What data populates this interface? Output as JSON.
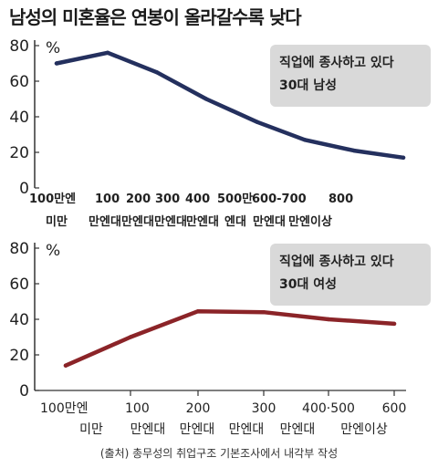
{
  "title": "남성의 미혼율은 연봉이 올라갈수록 낮다",
  "source": "(출처) 총무성의 취업구조 기본조사에서 내각부 작성",
  "colors": {
    "men": "#24305e",
    "women": "#8b2428",
    "note_bg": "#d9d9d9",
    "axis": "#333333"
  },
  "chart_data": [
    {
      "type": "line",
      "unit": "%",
      "ylim": [
        0,
        80
      ],
      "yticks": [
        "0",
        "20",
        "40",
        "60",
        "80"
      ],
      "categories_top": [
        "100만엔",
        "100",
        "200",
        "300",
        "400",
        "500만",
        "600-700",
        "800"
      ],
      "categories_bottom": [
        "미만",
        "만엔대",
        "만엔대",
        "만엔대",
        "만엔대",
        "엔대",
        "만엔대",
        "만엔이상"
      ],
      "series": [
        {
          "values": [
            70,
            76,
            65,
            50,
            37,
            27,
            21,
            17
          ]
        }
      ],
      "annotation": [
        "직업에 종사하고 있다",
        "30대 남성"
      ]
    },
    {
      "type": "line",
      "unit": "%",
      "ylim": [
        0,
        80
      ],
      "yticks": [
        "0",
        "20",
        "40",
        "60",
        "80"
      ],
      "categories_top": [
        "100만엔",
        "100",
        "200",
        "300",
        "400·500",
        "600"
      ],
      "categories_bottom": [
        "미만",
        "만엔대",
        "만엔대",
        "만엔대",
        "만엔대",
        "만엔이상"
      ],
      "series": [
        {
          "values": [
            14,
            30,
            44.5,
            44,
            40,
            37.5
          ]
        }
      ],
      "annotation": [
        "직업에 종사하고 있다",
        "30대 여성"
      ]
    }
  ]
}
